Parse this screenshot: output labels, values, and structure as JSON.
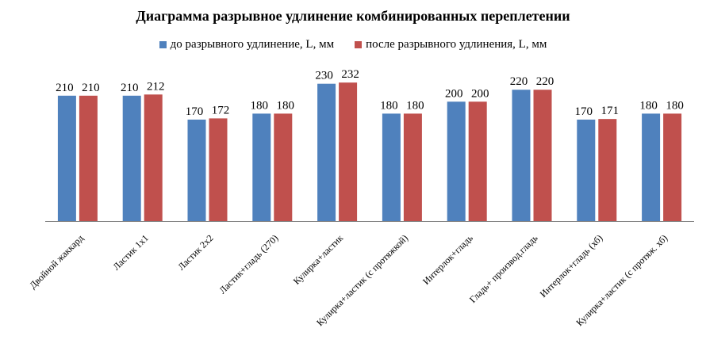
{
  "chart_data": {
    "type": "bar",
    "title": "Диаграмма разрывное удлинение комбинированных переплетении",
    "categories": [
      "Двойной жаккард",
      "Ластик 1х1",
      "Ластик 2х2",
      "Ластик+гладь (270)",
      "Кулирка+ластик",
      "Кулирка+ластик (с протяжкой)",
      "Интерлок+гладь",
      "Гладь+ производ.гладь",
      "Интерлок+гладь (хб)",
      "Кулирка+ластик (с протяж. хб)"
    ],
    "series": [
      {
        "name": "до разрывного удлинение, L, мм",
        "color": "#4F81BD",
        "values": [
          210,
          210,
          170,
          180,
          230,
          180,
          200,
          220,
          170,
          180
        ]
      },
      {
        "name": "после разрывного удлинения, L, мм",
        "color": "#C0504D",
        "values": [
          210,
          212,
          172,
          180,
          232,
          180,
          200,
          220,
          171,
          180
        ]
      }
    ],
    "data_labels": true,
    "grid": false,
    "legend_position": "top",
    "ylim": [
      0,
      250
    ]
  }
}
